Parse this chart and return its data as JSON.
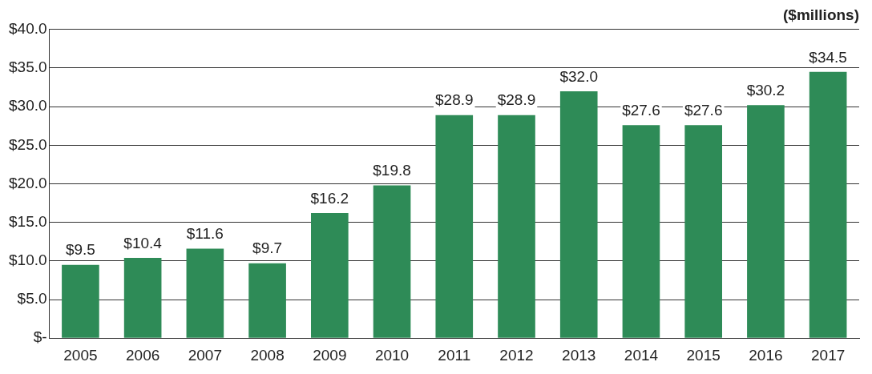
{
  "chart_data": {
    "type": "bar",
    "title": "($millions)",
    "categories": [
      "2005",
      "2006",
      "2007",
      "2008",
      "2009",
      "2010",
      "2011",
      "2012",
      "2013",
      "2014",
      "2015",
      "2016",
      "2017"
    ],
    "values": [
      9.5,
      10.4,
      11.6,
      9.7,
      16.2,
      19.8,
      28.9,
      28.9,
      32.0,
      27.6,
      27.6,
      30.2,
      34.5
    ],
    "value_labels": [
      "$9.5",
      "$10.4",
      "$11.6",
      "$9.7",
      "$16.2",
      "$19.8",
      "$28.9",
      "$28.9",
      "$32.0",
      "$27.6",
      "$27.6",
      "$30.2",
      "$34.5"
    ],
    "color": "#2e8b57",
    "ylim": [
      0,
      40
    ],
    "yticks": [
      {
        "value": 0,
        "label": "$-"
      },
      {
        "value": 5,
        "label": "$5.0"
      },
      {
        "value": 10,
        "label": "$10.0"
      },
      {
        "value": 15,
        "label": "$15.0"
      },
      {
        "value": 20,
        "label": "$20.0"
      },
      {
        "value": 25,
        "label": "$25.0"
      },
      {
        "value": 30,
        "label": "$30.0"
      },
      {
        "value": 35,
        "label": "$35.0"
      },
      {
        "value": 40,
        "label": "$40.0"
      }
    ],
    "grid": "y"
  }
}
